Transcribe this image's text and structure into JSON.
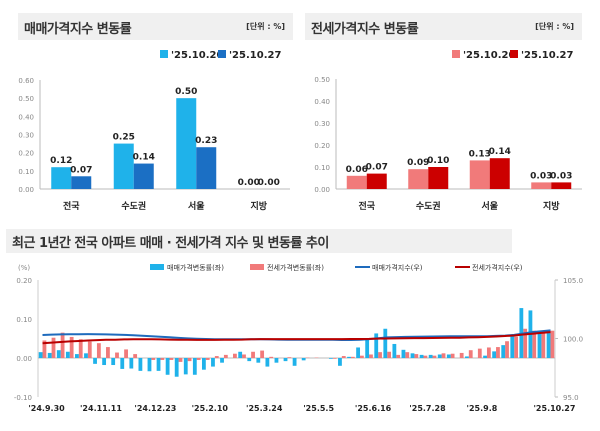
{
  "colors": {
    "sale_light": "#1fb2ea",
    "sale_dark": "#1b6fc4",
    "jeonse_light": "#f17a7a",
    "jeonse_dark": "#cc0000",
    "sale_line": "#1e6bbd",
    "jeonse_line": "#b80000"
  },
  "chart_data": [
    {
      "type": "bar",
      "title": "매매가격지수 변동률",
      "unit": "[단위 : %]",
      "categories": [
        "전국",
        "수도권",
        "서울",
        "지방"
      ],
      "series": [
        {
          "name": "'25.10.20",
          "values": [
            0.12,
            0.25,
            0.5,
            0.0
          ]
        },
        {
          "name": "'25.10.27",
          "values": [
            0.07,
            0.14,
            0.23,
            0.0
          ]
        }
      ],
      "data_labels": [
        [
          "0.12",
          "0.25",
          "0.50",
          "0.00"
        ],
        [
          "0.07",
          "0.14",
          "0.23",
          "0.00"
        ]
      ],
      "ylim": [
        0,
        0.6
      ],
      "yticks": [
        "0.00",
        "0.10",
        "0.20",
        "0.30",
        "0.40",
        "0.50",
        "0.60"
      ],
      "legend": "top-right"
    },
    {
      "type": "bar",
      "title": "전세가격지수 변동률",
      "unit": "[단위 : %]",
      "categories": [
        "전국",
        "수도권",
        "서울",
        "지방"
      ],
      "series": [
        {
          "name": "'25.10.20",
          "values": [
            0.06,
            0.09,
            0.13,
            0.03
          ]
        },
        {
          "name": "'25.10.27",
          "values": [
            0.07,
            0.1,
            0.14,
            0.03
          ]
        }
      ],
      "data_labels": [
        [
          "0.06",
          "0.09",
          "0.13",
          "0.03"
        ],
        [
          "0.07",
          "0.10",
          "0.14",
          "0.03"
        ]
      ],
      "ylim": [
        0,
        0.5
      ],
      "yticks": [
        "0.00",
        "0.10",
        "0.20",
        "0.30",
        "0.40",
        "0.50"
      ],
      "legend": "top-right"
    },
    {
      "type": "bar+line",
      "title": "최근 1년간 전국 아파트 매매 · 전세가격 지수 및 변동률 추이",
      "ylabel_left": "(%)",
      "ylim_left": [
        -0.1,
        0.2
      ],
      "yticks_left": [
        "-0.10",
        "0.00",
        "0.10",
        "0.20"
      ],
      "ylim_right": [
        95,
        105
      ],
      "yticks_right": [
        "95.0",
        "100.0",
        "105.0"
      ],
      "xticks": [
        "'24.9.30",
        "'24.11.11",
        "'24.12.23",
        "'25.2.10",
        "'25.3.24",
        "'25.5.5",
        "'25.6.16",
        "'25.7.28",
        "'25.9.8",
        "'25.10.27"
      ],
      "legend": "top",
      "series": [
        {
          "name": "매매가격변동률(좌)",
          "kind": "bar",
          "values": [
            0.015,
            0.013,
            0.02,
            0.016,
            0.01,
            0.012,
            -0.015,
            -0.018,
            -0.018,
            -0.028,
            -0.027,
            -0.033,
            -0.034,
            -0.033,
            -0.043,
            -0.048,
            -0.042,
            -0.043,
            -0.03,
            -0.022,
            -0.012,
            0.0,
            0.016,
            -0.008,
            -0.012,
            -0.022,
            -0.012,
            -0.008,
            -0.02,
            -0.006,
            0.0,
            0.0,
            -0.002,
            -0.02,
            0.003,
            0.027,
            0.05,
            0.063,
            0.075,
            0.036,
            0.021,
            0.012,
            0.008,
            0.008,
            0.009,
            0.009,
            0.0,
            0.004,
            0.0,
            0.006,
            0.017,
            0.033,
            0.06,
            0.128,
            0.122,
            0.07,
            0.07
          ]
        },
        {
          "name": "전세가격변동률(좌)",
          "kind": "bar",
          "values": [
            0.045,
            0.052,
            0.065,
            0.054,
            0.048,
            0.042,
            0.038,
            0.028,
            0.014,
            0.022,
            0.01,
            0.0,
            -0.005,
            -0.005,
            -0.005,
            -0.01,
            -0.008,
            -0.005,
            -0.005,
            0.005,
            0.008,
            0.011,
            0.009,
            0.016,
            0.019,
            0.003,
            0.0,
            0.002,
            0.0,
            0.001,
            0.001,
            0.0,
            -0.002,
            0.005,
            0.003,
            0.006,
            0.009,
            0.015,
            0.016,
            0.008,
            0.015,
            0.01,
            0.006,
            0.006,
            0.012,
            0.011,
            0.013,
            0.02,
            0.024,
            0.027,
            0.028,
            0.043,
            0.055,
            0.075,
            0.07,
            0.07,
            0.07
          ]
        },
        {
          "name": "매매가격지수(우)",
          "kind": "line",
          "values": [
            100.3,
            100.33,
            100.35,
            100.36,
            100.37,
            100.38,
            100.37,
            100.35,
            100.33,
            100.31,
            100.28,
            100.24,
            100.2,
            100.15,
            100.1,
            100.05,
            100.01,
            99.98,
            99.96,
            99.94,
            99.93,
            99.93,
            99.94,
            99.94,
            99.93,
            99.92,
            99.91,
            99.9,
            99.9,
            99.9,
            99.9,
            99.9,
            99.89,
            99.87,
            99.87,
            99.9,
            99.95,
            100.02,
            100.09,
            100.12,
            100.14,
            100.15,
            100.16,
            100.17,
            100.18,
            100.19,
            100.19,
            100.2,
            100.2,
            100.2,
            100.22,
            100.25,
            100.31,
            100.43,
            100.55,
            100.62,
            100.69
          ]
        },
        {
          "name": "전세가격지수(우)",
          "kind": "line",
          "values": [
            99.6,
            99.65,
            99.7,
            99.75,
            99.79,
            99.83,
            99.86,
            99.89,
            99.9,
            99.92,
            99.93,
            99.93,
            99.93,
            99.92,
            99.91,
            99.9,
            99.89,
            99.88,
            99.88,
            99.88,
            99.89,
            99.9,
            99.91,
            99.93,
            99.95,
            99.95,
            99.95,
            99.95,
            99.95,
            99.95,
            99.95,
            99.95,
            99.95,
            99.95,
            99.96,
            99.96,
            99.97,
            99.99,
            100.0,
            100.01,
            100.02,
            100.03,
            100.03,
            100.04,
            100.05,
            100.06,
            100.07,
            100.09,
            100.11,
            100.14,
            100.17,
            100.21,
            100.26,
            100.34,
            100.41,
            100.48,
            100.55
          ]
        }
      ]
    }
  ]
}
